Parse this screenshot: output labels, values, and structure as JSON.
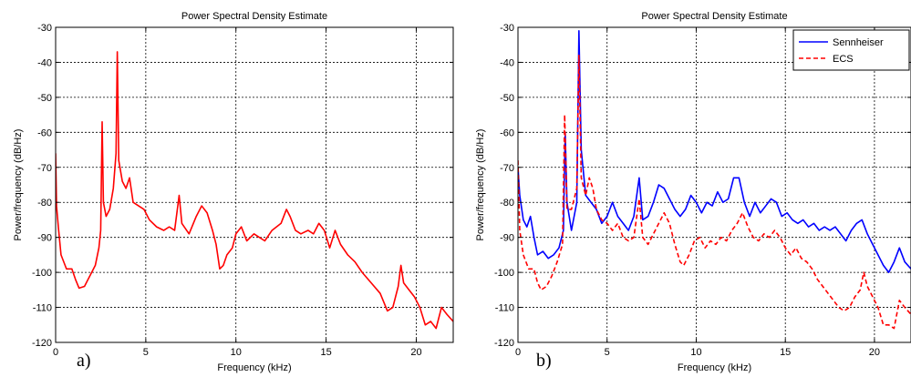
{
  "chart_data": [
    {
      "type": "line",
      "panel_label": "a)",
      "title": "Power Spectral Density Estimate",
      "xlabel": "Frequency (kHz)",
      "ylabel": "Power/frequency (dB/Hz)",
      "xlim": [
        0,
        22.05
      ],
      "ylim": [
        -120,
        -30
      ],
      "xticks": [
        0,
        5,
        10,
        15,
        20
      ],
      "yticks": [
        -30,
        -40,
        -50,
        -60,
        -70,
        -80,
        -90,
        -100,
        -110,
        -120
      ],
      "grid": true,
      "series": [
        {
          "color": "#ff0000",
          "dash": "solid",
          "points": [
            [
              0,
              -66
            ],
            [
              0.05,
              -81
            ],
            [
              0.15,
              -87
            ],
            [
              0.3,
              -95
            ],
            [
              0.6,
              -99
            ],
            [
              0.9,
              -99
            ],
            [
              1.1,
              -102
            ],
            [
              1.3,
              -104.5
            ],
            [
              1.6,
              -104
            ],
            [
              1.8,
              -102
            ],
            [
              2.0,
              -100
            ],
            [
              2.2,
              -98
            ],
            [
              2.4,
              -93
            ],
            [
              2.5,
              -88
            ],
            [
              2.58,
              -57
            ],
            [
              2.65,
              -80
            ],
            [
              2.8,
              -84
            ],
            [
              3.0,
              -82
            ],
            [
              3.2,
              -76
            ],
            [
              3.35,
              -66
            ],
            [
              3.42,
              -37
            ],
            [
              3.5,
              -68
            ],
            [
              3.7,
              -74
            ],
            [
              3.9,
              -76
            ],
            [
              4.1,
              -73
            ],
            [
              4.3,
              -80
            ],
            [
              4.6,
              -81
            ],
            [
              4.9,
              -82
            ],
            [
              5.2,
              -85
            ],
            [
              5.6,
              -87
            ],
            [
              6.0,
              -88
            ],
            [
              6.3,
              -87
            ],
            [
              6.6,
              -88
            ],
            [
              6.85,
              -78
            ],
            [
              7.0,
              -86
            ],
            [
              7.4,
              -89
            ],
            [
              7.8,
              -84
            ],
            [
              8.1,
              -81
            ],
            [
              8.4,
              -83
            ],
            [
              8.7,
              -88
            ],
            [
              8.9,
              -92
            ],
            [
              9.1,
              -99
            ],
            [
              9.3,
              -98
            ],
            [
              9.5,
              -95
            ],
            [
              9.8,
              -93
            ],
            [
              10.0,
              -89
            ],
            [
              10.3,
              -87
            ],
            [
              10.6,
              -91
            ],
            [
              11.0,
              -89
            ],
            [
              11.3,
              -90
            ],
            [
              11.6,
              -91
            ],
            [
              12.0,
              -88
            ],
            [
              12.5,
              -86
            ],
            [
              12.8,
              -82
            ],
            [
              13.0,
              -84
            ],
            [
              13.3,
              -88
            ],
            [
              13.6,
              -89
            ],
            [
              14.0,
              -88
            ],
            [
              14.3,
              -89
            ],
            [
              14.6,
              -86
            ],
            [
              14.9,
              -88
            ],
            [
              15.2,
              -93
            ],
            [
              15.5,
              -88
            ],
            [
              15.8,
              -92
            ],
            [
              16.2,
              -95
            ],
            [
              16.6,
              -97
            ],
            [
              17.0,
              -100
            ],
            [
              17.5,
              -103
            ],
            [
              18.0,
              -106
            ],
            [
              18.4,
              -111
            ],
            [
              18.7,
              -110
            ],
            [
              19.0,
              -104
            ],
            [
              19.15,
              -98
            ],
            [
              19.3,
              -103
            ],
            [
              19.6,
              -105
            ],
            [
              19.9,
              -107
            ],
            [
              20.2,
              -110
            ],
            [
              20.5,
              -115
            ],
            [
              20.8,
              -114
            ],
            [
              21.1,
              -116
            ],
            [
              21.4,
              -110
            ],
            [
              21.7,
              -112
            ],
            [
              22.05,
              -114
            ]
          ]
        }
      ]
    },
    {
      "type": "line",
      "panel_label": "b)",
      "title": "Power Spectral Density Estimate",
      "xlabel": "Frequency (kHz)",
      "ylabel": "Power/frequency (dB/Hz)",
      "xlim": [
        0,
        22.05
      ],
      "ylim": [
        -120,
        -30
      ],
      "xticks": [
        0,
        5,
        10,
        15,
        20
      ],
      "yticks": [
        -30,
        -40,
        -50,
        -60,
        -70,
        -80,
        -90,
        -100,
        -110,
        -120
      ],
      "grid": true,
      "legend_position": "top-right",
      "series": [
        {
          "name": "Sennheiser",
          "color": "#0000ff",
          "dash": "solid",
          "points": [
            [
              0,
              -70
            ],
            [
              0.1,
              -78
            ],
            [
              0.3,
              -85
            ],
            [
              0.5,
              -87
            ],
            [
              0.7,
              -84
            ],
            [
              0.9,
              -90
            ],
            [
              1.1,
              -95
            ],
            [
              1.4,
              -94
            ],
            [
              1.7,
              -96
            ],
            [
              2.0,
              -95
            ],
            [
              2.3,
              -93
            ],
            [
              2.55,
              -88
            ],
            [
              2.65,
              -60
            ],
            [
              2.75,
              -80
            ],
            [
              3.0,
              -88
            ],
            [
              3.3,
              -80
            ],
            [
              3.42,
              -31
            ],
            [
              3.55,
              -65
            ],
            [
              3.8,
              -78
            ],
            [
              4.1,
              -80
            ],
            [
              4.4,
              -82
            ],
            [
              4.7,
              -86
            ],
            [
              5.0,
              -84
            ],
            [
              5.3,
              -80
            ],
            [
              5.6,
              -84
            ],
            [
              5.9,
              -86
            ],
            [
              6.2,
              -88
            ],
            [
              6.5,
              -84
            ],
            [
              6.8,
              -73
            ],
            [
              7.0,
              -85
            ],
            [
              7.3,
              -84
            ],
            [
              7.6,
              -80
            ],
            [
              7.9,
              -75
            ],
            [
              8.2,
              -76
            ],
            [
              8.5,
              -79
            ],
            [
              8.8,
              -82
            ],
            [
              9.1,
              -84
            ],
            [
              9.4,
              -82
            ],
            [
              9.7,
              -78
            ],
            [
              10.0,
              -80
            ],
            [
              10.3,
              -83
            ],
            [
              10.6,
              -80
            ],
            [
              10.9,
              -81
            ],
            [
              11.2,
              -77
            ],
            [
              11.5,
              -80
            ],
            [
              11.8,
              -79
            ],
            [
              12.1,
              -73
            ],
            [
              12.4,
              -73
            ],
            [
              12.7,
              -80
            ],
            [
              13.0,
              -84
            ],
            [
              13.3,
              -80
            ],
            [
              13.6,
              -83
            ],
            [
              13.9,
              -81
            ],
            [
              14.2,
              -79
            ],
            [
              14.5,
              -80
            ],
            [
              14.8,
              -84
            ],
            [
              15.1,
              -83
            ],
            [
              15.4,
              -85
            ],
            [
              15.7,
              -86
            ],
            [
              16.0,
              -85
            ],
            [
              16.3,
              -87
            ],
            [
              16.6,
              -86
            ],
            [
              16.9,
              -88
            ],
            [
              17.2,
              -87
            ],
            [
              17.5,
              -88
            ],
            [
              17.8,
              -87
            ],
            [
              18.1,
              -89
            ],
            [
              18.4,
              -91
            ],
            [
              18.7,
              -88
            ],
            [
              19.0,
              -86
            ],
            [
              19.3,
              -85
            ],
            [
              19.6,
              -89
            ],
            [
              19.9,
              -92
            ],
            [
              20.2,
              -95
            ],
            [
              20.5,
              -98
            ],
            [
              20.8,
              -100
            ],
            [
              21.1,
              -97
            ],
            [
              21.4,
              -93
            ],
            [
              21.7,
              -97
            ],
            [
              22.05,
              -99
            ]
          ]
        },
        {
          "name": "ECS",
          "color": "#ff0000",
          "dash": "dashed",
          "points": [
            [
              0,
              -68
            ],
            [
              0.1,
              -88
            ],
            [
              0.3,
              -95
            ],
            [
              0.6,
              -99
            ],
            [
              0.9,
              -99
            ],
            [
              1.1,
              -103
            ],
            [
              1.3,
              -105
            ],
            [
              1.6,
              -104
            ],
            [
              1.9,
              -101
            ],
            [
              2.2,
              -97
            ],
            [
              2.5,
              -92
            ],
            [
              2.62,
              -55
            ],
            [
              2.75,
              -82
            ],
            [
              3.0,
              -82
            ],
            [
              3.3,
              -76
            ],
            [
              3.42,
              -38
            ],
            [
              3.55,
              -73
            ],
            [
              3.8,
              -78
            ],
            [
              4.0,
              -73
            ],
            [
              4.2,
              -76
            ],
            [
              4.4,
              -82
            ],
            [
              4.7,
              -85
            ],
            [
              5.0,
              -86
            ],
            [
              5.3,
              -88
            ],
            [
              5.6,
              -86
            ],
            [
              5.9,
              -90
            ],
            [
              6.2,
              -91
            ],
            [
              6.5,
              -90
            ],
            [
              6.8,
              -79
            ],
            [
              7.0,
              -90
            ],
            [
              7.3,
              -92
            ],
            [
              7.6,
              -89
            ],
            [
              7.9,
              -86
            ],
            [
              8.2,
              -83
            ],
            [
              8.5,
              -86
            ],
            [
              8.8,
              -92
            ],
            [
              9.1,
              -97
            ],
            [
              9.3,
              -98
            ],
            [
              9.6,
              -95
            ],
            [
              9.9,
              -91
            ],
            [
              10.2,
              -90
            ],
            [
              10.5,
              -93
            ],
            [
              10.8,
              -91
            ],
            [
              11.1,
              -92
            ],
            [
              11.4,
              -90
            ],
            [
              11.7,
              -91
            ],
            [
              12.0,
              -88
            ],
            [
              12.3,
              -86
            ],
            [
              12.6,
              -83
            ],
            [
              12.9,
              -87
            ],
            [
              13.2,
              -90
            ],
            [
              13.5,
              -91
            ],
            [
              13.8,
              -89
            ],
            [
              14.1,
              -90
            ],
            [
              14.4,
              -88
            ],
            [
              14.7,
              -90
            ],
            [
              15.0,
              -93
            ],
            [
              15.3,
              -95
            ],
            [
              15.6,
              -93
            ],
            [
              15.9,
              -96
            ],
            [
              16.2,
              -97
            ],
            [
              16.5,
              -99
            ],
            [
              16.8,
              -102
            ],
            [
              17.1,
              -104
            ],
            [
              17.4,
              -106
            ],
            [
              17.7,
              -108
            ],
            [
              18.0,
              -110
            ],
            [
              18.3,
              -111
            ],
            [
              18.6,
              -110
            ],
            [
              18.9,
              -107
            ],
            [
              19.2,
              -105
            ],
            [
              19.4,
              -100
            ],
            [
              19.6,
              -104
            ],
            [
              19.9,
              -107
            ],
            [
              20.2,
              -110
            ],
            [
              20.5,
              -115
            ],
            [
              20.8,
              -115
            ],
            [
              21.1,
              -116
            ],
            [
              21.4,
              -108
            ],
            [
              21.7,
              -110
            ],
            [
              22.05,
              -112
            ]
          ]
        }
      ]
    }
  ]
}
